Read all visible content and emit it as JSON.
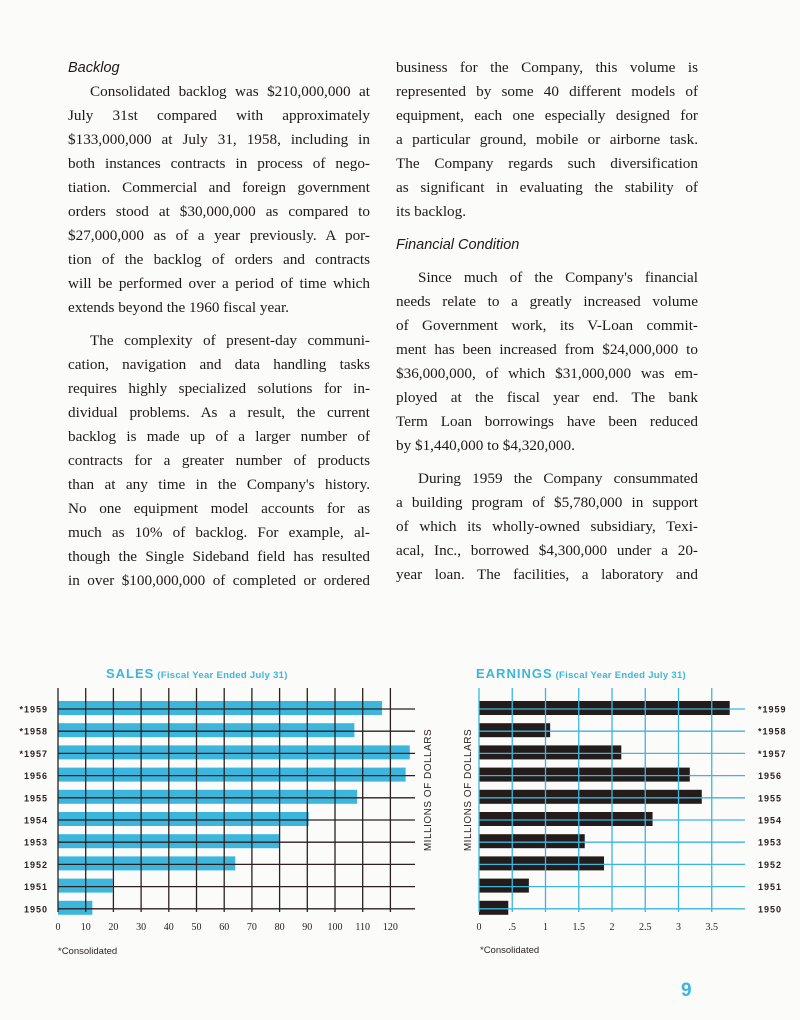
{
  "left_column": {
    "heading": "Backlog",
    "paragraphs": [
      {
        "lines": [
          "Consolidated backlog was $210,000,000 at",
          "July 31st compared with approximately",
          "$133,000,000 at July 31, 1958, including in",
          "both instances contracts in process of nego-",
          "tiation. Commercial and foreign government",
          "orders stood at $30,000,000 as compared to",
          "$27,000,000 as of a year previously. A por-",
          "tion of the backlog of orders and contracts",
          "will be performed over a period of time which",
          "extends beyond the 1960 fiscal year."
        ]
      },
      {
        "lines": [
          "The complexity of present-day communi-",
          "cation, navigation and data handling tasks",
          "requires highly specialized solutions for in-",
          "dividual problems. As a result, the current",
          "backlog is made up of a larger number of",
          "contracts for a greater number of products",
          "than at any time in the Company's history.",
          "No one equipment model accounts for as",
          "much as 10% of backlog. For example, al-",
          "though the Single Sideband field has resulted",
          "in over $100,000,000 of completed or ordered"
        ],
        "continues": true
      }
    ]
  },
  "right_column": {
    "intro_lines": [
      "business for the Company, this volume is",
      "represented by some 40 different models of",
      "equipment, each one especially designed for",
      "a particular ground, mobile or airborne task.",
      "The Company regards such diversification",
      "as significant in evaluating the stability of",
      "its backlog."
    ],
    "heading": "Financial Condition",
    "paragraphs": [
      {
        "lines": [
          "Since much of the Company's financial",
          "needs relate to a greatly increased volume",
          "of Government work, its V-Loan commit-",
          "ment has been increased from $24,000,000 to",
          "$36,000,000, of which $31,000,000 was em-",
          "ployed at the fiscal year end. The bank",
          "Term Loan borrowings have been reduced",
          "by $1,440,000 to $4,320,000."
        ]
      },
      {
        "lines": [
          "During 1959 the Company consummated",
          "a building program of $5,780,000 in support",
          "of which its wholly-owned subsidiary, Texi-",
          "acal, Inc., borrowed $4,300,000 under a 20-",
          "year loan. The facilities, a laboratory and"
        ],
        "continues": true
      }
    ]
  },
  "colors": {
    "cyan": "#3db6de",
    "dark": "#241c1a",
    "grid_dark": "#2a2220"
  },
  "chart_data": [
    {
      "type": "bar",
      "orientation": "horizontal",
      "title": "SALES",
      "subtitle": "(Fiscal Year Ended July 31)",
      "categories": [
        "*1959",
        "*1958",
        "*1957",
        "1956",
        "1955",
        "1954",
        "1953",
        "1952",
        "1951",
        "1950"
      ],
      "values": [
        117,
        107,
        127,
        125.5,
        108,
        90.5,
        80,
        64,
        19.7,
        12.4
      ],
      "xlabel": "MILLIONS OF DOLLARS",
      "x_ticks": [
        "0",
        "10",
        "20",
        "30",
        "40",
        "50",
        "60",
        "70",
        "80",
        "90",
        "100",
        "110",
        "120"
      ],
      "xlim": [
        0,
        130
      ],
      "grid": true,
      "bar_color": "#3db6de",
      "footnote": "*Consolidated"
    },
    {
      "type": "bar",
      "orientation": "horizontal",
      "title": "EARNINGS",
      "subtitle": "(Fiscal Year Ended July 31)",
      "categories": [
        "*1959",
        "*1958",
        "*1957",
        "1956",
        "1955",
        "1954",
        "1953",
        "1952",
        "1951",
        "1950"
      ],
      "values": [
        3.77,
        1.07,
        2.14,
        3.17,
        3.35,
        2.61,
        1.59,
        1.88,
        0.75,
        0.44
      ],
      "xlabel": "MILLIONS OF DOLLARS",
      "x_ticks": [
        "0",
        ".5",
        "1",
        "1.5",
        "2",
        "2.5",
        "3",
        "3.5"
      ],
      "xlim": [
        0,
        4
      ],
      "grid": true,
      "bar_color": "#241c1a",
      "footnote": "*Consolidated"
    }
  ],
  "page_number": "9"
}
